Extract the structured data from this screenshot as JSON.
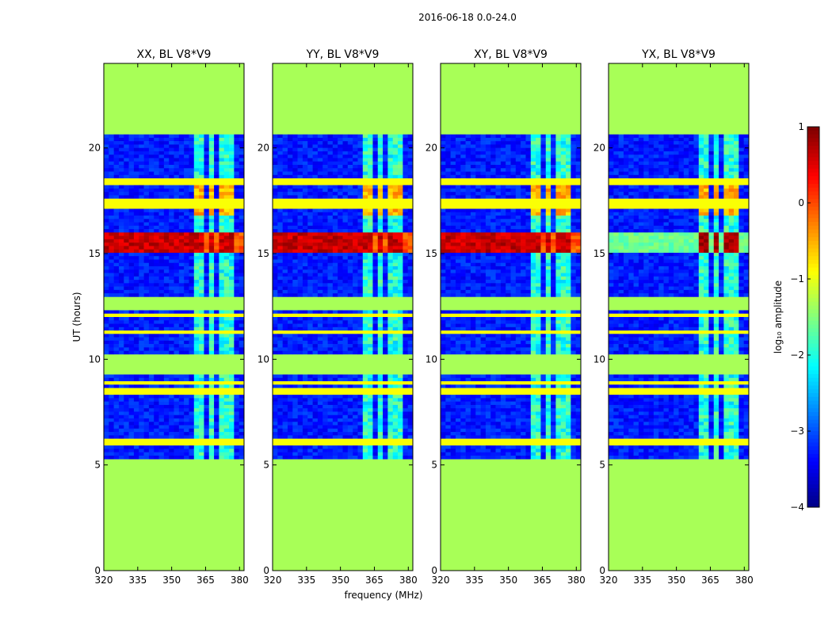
{
  "chart_data": {
    "type": "heatmap",
    "suptitle": "2016-06-18 0.0-24.0",
    "xlabel": "frequency (MHz)",
    "ylabel": "UT (hours)",
    "xlim": [
      320,
      382
    ],
    "ylim": [
      0,
      24
    ],
    "xticks": [
      320,
      335,
      350,
      365,
      380
    ],
    "yticks": [
      0,
      5,
      10,
      15,
      20
    ],
    "panels": [
      {
        "title": "XX, BL V8*V9"
      },
      {
        "title": "YY, BL V8*V9"
      },
      {
        "title": "XY, BL V8*V9"
      },
      {
        "title": "YX, BL V8*V9"
      }
    ],
    "data_time_range": [
      5.2,
      20.7
    ],
    "rfi_band_mhz": [
      359.5,
      378.5
    ],
    "rfi_channel_centers_mhz": [
      362.5,
      367.5,
      372.5,
      377.5
    ],
    "strong_event_hours": [
      15.0,
      16.0
    ],
    "empty_rows_hours": [
      [
        0,
        5.2
      ],
      [
        9.3,
        10.3
      ],
      [
        12.4,
        13.0
      ],
      [
        20.7,
        24
      ]
    ],
    "colorbar": {
      "label": "log₁₀ amplitude",
      "range": [
        -4,
        1
      ],
      "ticks": [
        "1",
        "0",
        "−1",
        "−2",
        "−3",
        "−4"
      ],
      "colormap": "jet"
    }
  }
}
